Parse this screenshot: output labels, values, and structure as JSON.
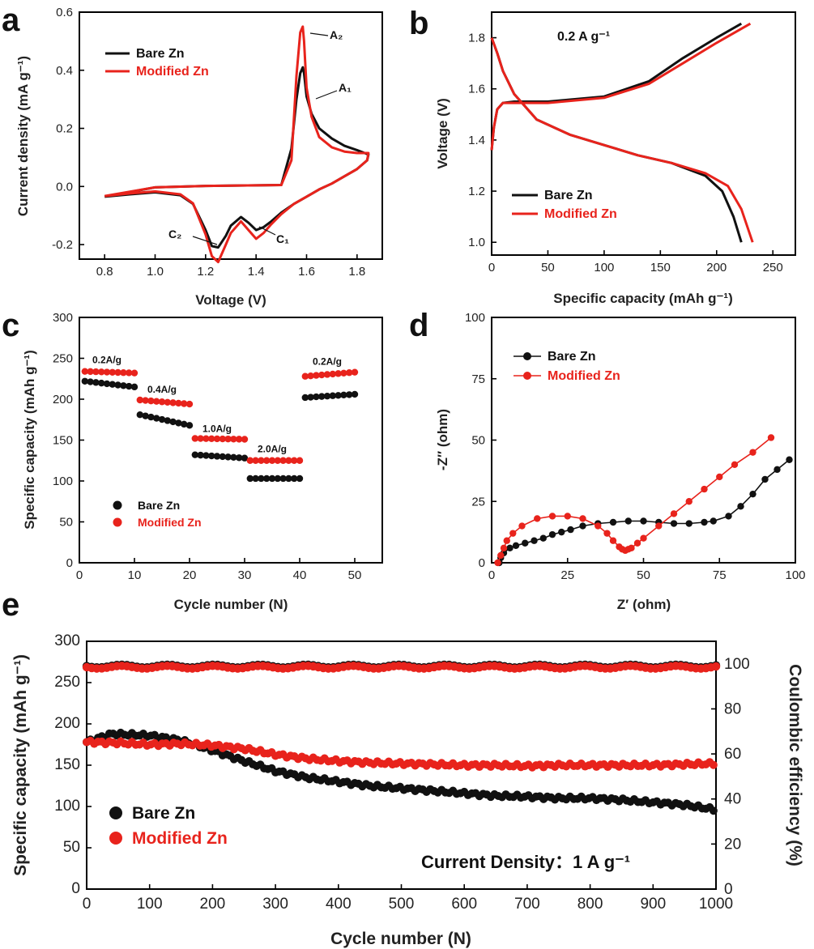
{
  "colors": {
    "bare": "#111111",
    "modified": "#e8231c"
  },
  "chart_data": [
    {
      "panel": "a",
      "type": "line",
      "xlabel": "Voltage (V)",
      "ylabel": "Current density (mA g⁻¹)",
      "xlim": [
        0.7,
        1.9
      ],
      "ylim": [
        -0.25,
        0.6
      ],
      "xticks": [
        "0.8",
        "1.0",
        "1.2",
        "1.4",
        "1.6",
        "1.8"
      ],
      "yticks": [
        "-0.2",
        "0.0",
        "0.2",
        "0.4",
        "0.6"
      ],
      "legend": [
        "Bare Zn",
        "Modified Zn"
      ],
      "annotations": [
        "A₂",
        "A₁",
        "C₂",
        "C₁"
      ],
      "series": [
        {
          "name": "Bare Zn",
          "x": [
            0.8,
            0.9,
            1.0,
            1.1,
            1.15,
            1.2,
            1.225,
            1.25,
            1.28,
            1.3,
            1.34,
            1.37,
            1.4,
            1.43,
            1.46,
            1.5,
            1.55,
            1.6,
            1.65,
            1.7,
            1.75,
            1.8,
            1.84,
            1.845,
            1.8,
            1.75,
            1.7,
            1.65,
            1.62,
            1.6,
            1.59,
            1.585,
            1.575,
            1.56,
            1.54,
            1.5,
            1.4,
            1.3,
            1.2,
            1.0,
            0.8
          ],
          "y": [
            -0.035,
            -0.027,
            -0.02,
            -0.03,
            -0.06,
            -0.15,
            -0.205,
            -0.21,
            -0.17,
            -0.135,
            -0.105,
            -0.125,
            -0.15,
            -0.14,
            -0.12,
            -0.09,
            -0.06,
            -0.035,
            -0.01,
            0.01,
            0.035,
            0.06,
            0.09,
            0.11,
            0.125,
            0.14,
            0.165,
            0.2,
            0.25,
            0.31,
            0.39,
            0.41,
            0.39,
            0.3,
            0.13,
            0.005,
            0.004,
            0.003,
            0.002,
            -0.003,
            -0.035
          ]
        },
        {
          "name": "Modified Zn",
          "x": [
            0.8,
            0.9,
            1.0,
            1.1,
            1.15,
            1.2,
            1.225,
            1.25,
            1.28,
            1.3,
            1.34,
            1.37,
            1.4,
            1.43,
            1.46,
            1.5,
            1.55,
            1.6,
            1.65,
            1.7,
            1.75,
            1.8,
            1.84,
            1.845,
            1.8,
            1.75,
            1.7,
            1.65,
            1.62,
            1.6,
            1.59,
            1.585,
            1.575,
            1.56,
            1.54,
            1.5,
            1.4,
            1.3,
            1.2,
            1.0,
            0.8
          ],
          "y": [
            -0.033,
            -0.024,
            -0.017,
            -0.027,
            -0.058,
            -0.165,
            -0.24,
            -0.26,
            -0.2,
            -0.16,
            -0.12,
            -0.15,
            -0.18,
            -0.16,
            -0.13,
            -0.095,
            -0.06,
            -0.035,
            -0.01,
            0.01,
            0.035,
            0.06,
            0.09,
            0.115,
            0.115,
            0.12,
            0.135,
            0.17,
            0.24,
            0.34,
            0.5,
            0.55,
            0.53,
            0.38,
            0.09,
            0.005,
            0.004,
            0.003,
            0.002,
            -0.003,
            -0.033
          ]
        }
      ]
    },
    {
      "panel": "b",
      "type": "line",
      "xlabel": "Specific capacity (mAh g⁻¹)",
      "ylabel": "Voltage (V)",
      "xlim": [
        0,
        270
      ],
      "ylim": [
        0.95,
        1.9
      ],
      "xticks": [
        "0",
        "50",
        "100",
        "150",
        "200",
        "250"
      ],
      "yticks": [
        "1.0",
        "1.2",
        "1.4",
        "1.6",
        "1.8"
      ],
      "legend": [
        "Bare Zn",
        "Modified Zn"
      ],
      "annotation": "0.2 A g⁻¹",
      "series": [
        {
          "name": "Bare Zn charge",
          "x": [
            0,
            2,
            5,
            10,
            20,
            50,
            100,
            140,
            170,
            200,
            222
          ],
          "y": [
            1.36,
            1.45,
            1.52,
            1.545,
            1.55,
            1.55,
            1.57,
            1.63,
            1.72,
            1.8,
            1.855
          ]
        },
        {
          "name": "Bare Zn discharge",
          "x": [
            0,
            5,
            10,
            20,
            40,
            70,
            100,
            130,
            160,
            190,
            205,
            215,
            222
          ],
          "y": [
            1.8,
            1.74,
            1.67,
            1.58,
            1.48,
            1.42,
            1.38,
            1.34,
            1.31,
            1.26,
            1.2,
            1.1,
            1.0
          ]
        },
        {
          "name": "Modified Zn charge",
          "x": [
            0,
            2,
            5,
            10,
            20,
            50,
            100,
            140,
            170,
            200,
            230
          ],
          "y": [
            1.36,
            1.45,
            1.52,
            1.545,
            1.545,
            1.545,
            1.565,
            1.62,
            1.7,
            1.78,
            1.855
          ]
        },
        {
          "name": "Modified Zn discharge",
          "x": [
            0,
            5,
            10,
            20,
            40,
            70,
            100,
            130,
            160,
            190,
            210,
            222,
            232
          ],
          "y": [
            1.8,
            1.74,
            1.67,
            1.58,
            1.48,
            1.42,
            1.38,
            1.34,
            1.31,
            1.27,
            1.22,
            1.13,
            1.0
          ]
        }
      ]
    },
    {
      "panel": "c",
      "type": "scatter",
      "xlabel": "Cycle number (N)",
      "ylabel": "Specific capacity (mAh g⁻¹)",
      "xlim": [
        0,
        55
      ],
      "ylim": [
        0,
        300
      ],
      "xticks": [
        "0",
        "10",
        "20",
        "30",
        "40",
        "50"
      ],
      "yticks": [
        "0",
        "50",
        "100",
        "150",
        "200",
        "250",
        "300"
      ],
      "legend": [
        "Bare Zn",
        "Modified Zn"
      ],
      "rate_labels": [
        "0.2A/g",
        "0.4A/g",
        "1.0A/g",
        "2.0A/g",
        "0.2A/g"
      ],
      "series": [
        {
          "name": "Bare Zn",
          "segments": [
            [
              222,
              215
            ],
            [
              181,
              168
            ],
            [
              132,
              128
            ],
            [
              103,
              103
            ],
            [
              202,
              206
            ]
          ]
        },
        {
          "name": "Modified Zn",
          "segments": [
            [
              234,
              232
            ],
            [
              199,
              194
            ],
            [
              152,
              151
            ],
            [
              125,
              125
            ],
            [
              228,
              233
            ]
          ]
        }
      ]
    },
    {
      "panel": "d",
      "type": "line",
      "xlabel": "Z′ (ohm)",
      "ylabel": "-Z″ (ohm)",
      "xlim": [
        0,
        100
      ],
      "ylim": [
        0,
        100
      ],
      "xticks": [
        "0",
        "25",
        "50",
        "75",
        "100"
      ],
      "yticks": [
        "0",
        "25",
        "50",
        "75",
        "100"
      ],
      "legend": [
        "Bare Zn",
        "Modified Zn"
      ],
      "series": [
        {
          "name": "Bare Zn",
          "x": [
            2.5,
            3,
            4,
            6,
            8,
            11,
            14,
            17,
            20,
            23,
            26,
            30,
            35,
            40,
            45,
            50,
            55,
            60,
            65,
            70,
            73,
            78,
            82,
            86,
            90,
            94,
            98
          ],
          "y": [
            0,
            2,
            4,
            6,
            7,
            8,
            9,
            10,
            11.5,
            12.5,
            13.5,
            15,
            16,
            16.5,
            17,
            17,
            16.5,
            16,
            16,
            16.5,
            17,
            19,
            23,
            28,
            34,
            38,
            42
          ]
        },
        {
          "name": "Modified Zn",
          "x": [
            2,
            3,
            4,
            5,
            7,
            10,
            15,
            20,
            25,
            30,
            35,
            38,
            40,
            42,
            43,
            44,
            45,
            46,
            48,
            50,
            55,
            60,
            65,
            70,
            75,
            80,
            86,
            92
          ],
          "y": [
            0,
            3,
            6,
            9,
            12,
            15,
            18,
            19,
            19,
            18,
            15,
            12,
            9,
            6.5,
            5.5,
            5,
            5.5,
            6,
            8,
            10,
            15,
            20,
            25,
            30,
            35,
            40,
            45,
            51
          ]
        }
      ]
    },
    {
      "panel": "e",
      "type": "scatter",
      "xlabel": "Cycle number (N)",
      "ylabel": "Specific capacity (mAh g⁻¹)",
      "y2label": "Coulombic efficiency (%)",
      "xlim": [
        0,
        1000
      ],
      "ylim": [
        0,
        300
      ],
      "y2lim": [
        0,
        110
      ],
      "xticks": [
        "0",
        "100",
        "200",
        "300",
        "400",
        "500",
        "600",
        "700",
        "800",
        "900",
        "1000"
      ],
      "yticks": [
        "0",
        "50",
        "100",
        "150",
        "200",
        "250",
        "300"
      ],
      "y2ticks": [
        "0",
        "20",
        "40",
        "60",
        "80",
        "100"
      ],
      "legend": [
        "Bare Zn",
        "Modified Zn"
      ],
      "annotation": "Current Density：1 A g⁻¹",
      "series": [
        {
          "name": "Bare Zn capacity",
          "x": [
            0,
            40,
            100,
            150,
            200,
            250,
            300,
            350,
            400,
            450,
            500,
            550,
            600,
            650,
            700,
            750,
            800,
            850,
            900,
            950,
            1000
          ],
          "y": [
            178,
            188,
            186,
            180,
            168,
            155,
            143,
            135,
            130,
            125,
            122,
            119,
            116,
            113,
            112,
            110,
            110,
            108,
            105,
            102,
            96
          ]
        },
        {
          "name": "Modified Zn capacity",
          "x": [
            0,
            50,
            100,
            150,
            200,
            250,
            300,
            350,
            400,
            450,
            500,
            550,
            600,
            650,
            700,
            750,
            800,
            850,
            900,
            950,
            1000
          ],
          "y": [
            178,
            177,
            175,
            176,
            174,
            170,
            163,
            158,
            155,
            153,
            152,
            151,
            150,
            150,
            149,
            150,
            150,
            150,
            150,
            151,
            152
          ]
        },
        {
          "name": "Bare Zn CE",
          "x": [
            0,
            1000
          ],
          "y": [
            99,
            99
          ]
        },
        {
          "name": "Modified Zn CE",
          "x": [
            0,
            1000
          ],
          "y": [
            98.5,
            98.5
          ]
        }
      ]
    }
  ]
}
